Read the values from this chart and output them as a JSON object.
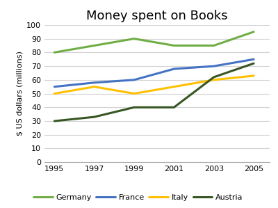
{
  "title": "Money spent on Books",
  "ylabel": "$ US dollars (millions)",
  "years": [
    1995,
    1997,
    1999,
    2001,
    2003,
    2005
  ],
  "series": {
    "Germany": {
      "values": [
        80,
        85,
        90,
        85,
        85,
        95
      ],
      "color": "#70ad47",
      "linewidth": 2.2
    },
    "France": {
      "values": [
        55,
        58,
        60,
        68,
        70,
        75
      ],
      "color": "#4472c4",
      "linewidth": 2.2
    },
    "Italy": {
      "values": [
        50,
        55,
        50,
        55,
        60,
        63
      ],
      "color": "#ffc000",
      "linewidth": 2.2
    },
    "Austria": {
      "values": [
        30,
        33,
        40,
        40,
        62,
        72
      ],
      "color": "#375623",
      "linewidth": 2.2
    }
  },
  "ylim": [
    0,
    100
  ],
  "yticks": [
    0,
    10,
    20,
    30,
    40,
    50,
    60,
    70,
    80,
    90,
    100
  ],
  "xticks": [
    1995,
    1997,
    1999,
    2001,
    2003,
    2005
  ],
  "legend_order": [
    "Germany",
    "France",
    "Italy",
    "Austria"
  ],
  "background_color": "#ffffff",
  "grid_color": "#d3d3d3",
  "title_fontsize": 13,
  "label_fontsize": 8,
  "tick_fontsize": 8,
  "legend_fontsize": 8,
  "xlim_left": 1994.5,
  "xlim_right": 2005.8
}
